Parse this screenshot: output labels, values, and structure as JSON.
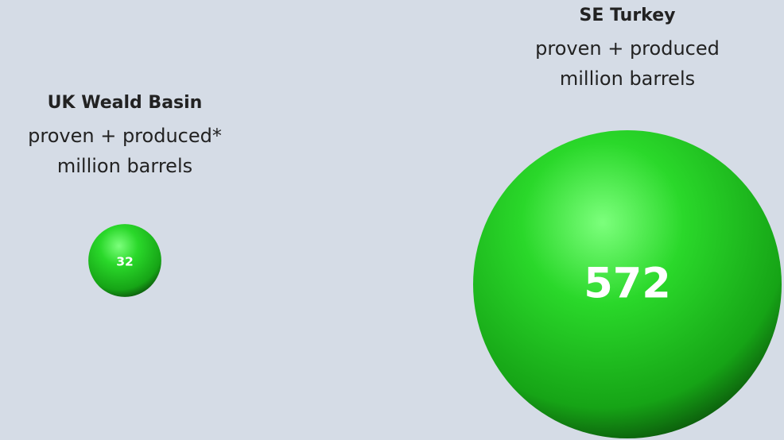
{
  "chart_data": {
    "type": "bubble",
    "categories": [
      "UK Weald Basin",
      "SE Turkey"
    ],
    "descriptions": [
      [
        "proven + produced*",
        "million barrels"
      ],
      [
        "proven + produced",
        "million barrels"
      ]
    ],
    "values": [
      32,
      572
    ],
    "color": "#2ad82a"
  }
}
